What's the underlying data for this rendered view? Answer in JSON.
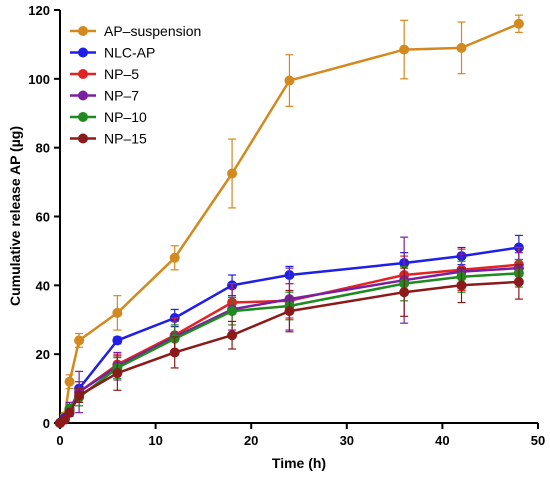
{
  "chart_data": {
    "type": "line",
    "xlabel": "Time (h)",
    "ylabel": "Cumulative release AP (µg)",
    "xlim": [
      0,
      50
    ],
    "ylim": [
      0,
      120
    ],
    "xticks": [
      0,
      10,
      20,
      30,
      40,
      50
    ],
    "yticks": [
      0,
      20,
      40,
      60,
      80,
      100,
      120
    ],
    "grid": false,
    "legend_position": "top-left",
    "series": [
      {
        "name": "AP–suspension",
        "color": "#d4891f",
        "x": [
          0,
          0.5,
          1,
          2,
          6,
          12,
          18,
          24,
          36,
          42,
          48
        ],
        "y": [
          0,
          2,
          12,
          24,
          32,
          48,
          72.5,
          99.5,
          108.5,
          109,
          116
        ],
        "err": [
          0,
          1,
          2,
          2,
          5,
          3.5,
          10,
          7.5,
          8.5,
          7.5,
          2.5
        ]
      },
      {
        "name": "NLC-AP",
        "color": "#1f1fe6",
        "x": [
          0,
          0.5,
          1,
          2,
          6,
          12,
          18,
          24,
          36,
          42,
          48
        ],
        "y": [
          0,
          1.5,
          3,
          10,
          24,
          30.5,
          40,
          43,
          46.5,
          48.5,
          51
        ],
        "err": [
          0,
          0.5,
          1,
          2,
          1,
          2.5,
          3,
          2.5,
          3,
          2.5,
          3.5
        ]
      },
      {
        "name": "NP–5",
        "color": "#e02424",
        "x": [
          0,
          0.5,
          1,
          2,
          6,
          12,
          18,
          24,
          36,
          42,
          48
        ],
        "y": [
          0,
          1,
          4,
          9,
          17,
          25.5,
          35,
          35.5,
          43,
          44.5,
          46
        ],
        "err": [
          0,
          0.5,
          1.5,
          3,
          3,
          5,
          5.5,
          5,
          5.5,
          6,
          5
        ]
      },
      {
        "name": "NP–7",
        "color": "#7a1fa2",
        "x": [
          0,
          0.5,
          1,
          2,
          6,
          12,
          18,
          24,
          36,
          42,
          48
        ],
        "y": [
          0,
          1,
          4,
          9,
          16.5,
          25,
          33,
          36,
          41.5,
          44,
          45
        ],
        "err": [
          0,
          0.5,
          2,
          6,
          4,
          4.5,
          6,
          9,
          12.5,
          5,
          4.5
        ]
      },
      {
        "name": "NP–10",
        "color": "#1f8a1f",
        "x": [
          0,
          0.5,
          1,
          2,
          6,
          12,
          18,
          24,
          36,
          42,
          48
        ],
        "y": [
          0,
          1,
          4,
          7.5,
          16,
          24.5,
          32.5,
          34,
          40.5,
          42.5,
          43.5
        ],
        "err": [
          0,
          0.5,
          1.5,
          2.5,
          3,
          4,
          4,
          4,
          5,
          4.5,
          4
        ]
      },
      {
        "name": "NP–15",
        "color": "#8b1a1a",
        "x": [
          0,
          0.5,
          1,
          2,
          6,
          12,
          18,
          24,
          36,
          42,
          48
        ],
        "y": [
          0,
          1,
          3,
          8,
          14.5,
          20.5,
          25.5,
          32.5,
          38,
          40,
          41
        ],
        "err": [
          0,
          0.5,
          1,
          2,
          5,
          4.5,
          4,
          6,
          7,
          5,
          5
        ]
      }
    ]
  }
}
